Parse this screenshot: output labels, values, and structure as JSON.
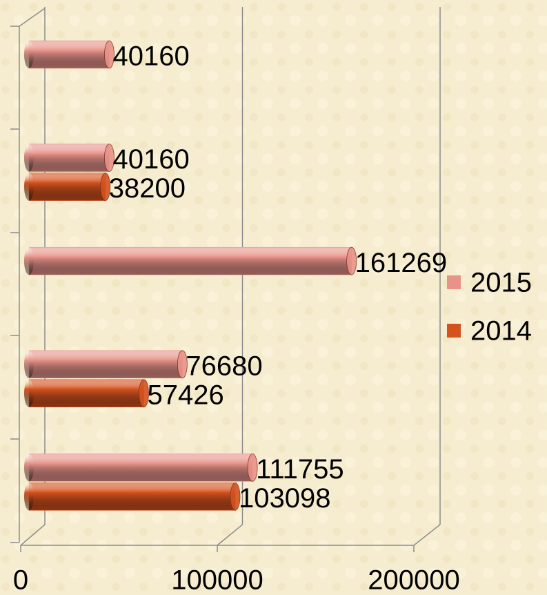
{
  "chart_data": {
    "type": "bar",
    "orientation": "horizontal",
    "categories": [
      null,
      null,
      null,
      null,
      null
    ],
    "series": [
      {
        "name": "2015",
        "color": "#e8938a",
        "values": [
          111755,
          76680,
          161269,
          40160,
          40160
        ]
      },
      {
        "name": "2014",
        "color": "#d4521e",
        "values": [
          103098,
          57426,
          null,
          38200,
          null
        ]
      }
    ],
    "xlim": [
      0,
      200000
    ],
    "xticks": [
      0,
      100000,
      200000
    ],
    "grid": true,
    "legend": "right"
  }
}
